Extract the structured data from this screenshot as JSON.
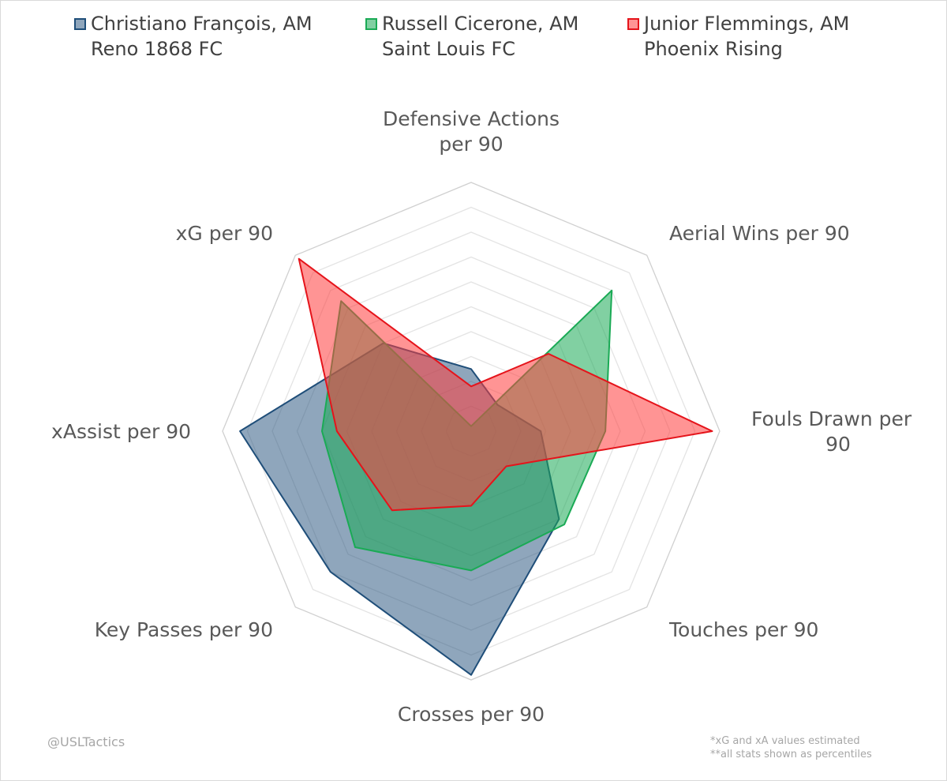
{
  "legend": [
    {
      "line1": "Christiano François, AM",
      "line2": "Reno 1868 FC"
    },
    {
      "line1": "Russell Cicerone, AM",
      "line2": "Saint Louis FC"
    },
    {
      "line1": "Junior Flemmings, AM",
      "line2": "Phoenix Rising"
    }
  ],
  "chart_data": {
    "type": "radar",
    "categories": [
      [
        "Defensive Actions",
        "per 90"
      ],
      [
        "Aerial Wins per 90"
      ],
      [
        "Fouls Drawn per",
        "90"
      ],
      [
        "Touches per 90"
      ],
      [
        "Crosses per 90"
      ],
      [
        "Key Passes per 90"
      ],
      [
        "xAssist per 90"
      ],
      [
        "xG per 90"
      ]
    ],
    "r_range": [
      0,
      100
    ],
    "grid": true,
    "grid_rings": 10,
    "legend_position": "top",
    "series": [
      {
        "name": "Christiano François, AM Reno 1868 FC",
        "color": "#1f4e79",
        "fill": "rgba(31,78,121,0.5)",
        "values": [
          25,
          15,
          28,
          50,
          98,
          80,
          93,
          50
        ]
      },
      {
        "name": "Russell Cicerone, AM Saint Louis FC",
        "color": "#1aaa55",
        "fill": "rgba(26,170,85,0.55)",
        "values": [
          2,
          80,
          54,
          53,
          56,
          66,
          60,
          74
        ]
      },
      {
        "name": "Junior Flemmings, AM Phoenix Rising",
        "color": "#e5141b",
        "fill": "rgba(255,60,60,0.55)",
        "values": [
          18,
          44,
          97,
          20,
          30,
          45,
          54,
          98
        ]
      }
    ]
  },
  "footer": {
    "credit": "@USLTactics",
    "note1": "*xG and xA values estimated",
    "note2": "**all stats shown as percentiles"
  }
}
